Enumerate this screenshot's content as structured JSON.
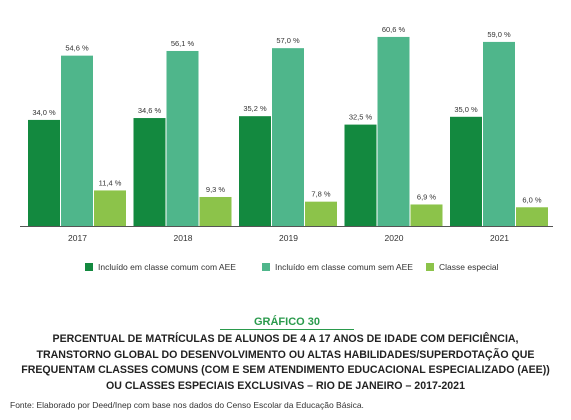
{
  "chart_data": {
    "type": "bar",
    "categories": [
      "2017",
      "2018",
      "2019",
      "2020",
      "2021"
    ],
    "series": [
      {
        "name": "Incluído em classe comum com AEE",
        "color": "#13893f",
        "values": [
          34.0,
          34.6,
          35.2,
          32.5,
          35.0
        ],
        "labels": [
          "34,0 %",
          "34,6 %",
          "35,2 %",
          "32,5 %",
          "35,0 %"
        ]
      },
      {
        "name": "Incluído em classe comum sem AEE",
        "color": "#4fb68b",
        "values": [
          54.6,
          56.1,
          57.0,
          60.6,
          59.0
        ],
        "labels": [
          "54,6 %",
          "56,1 %",
          "57,0 %",
          "60,6 %",
          "59,0 %"
        ]
      },
      {
        "name": "Classe especial",
        "color": "#8cc34a",
        "values": [
          11.4,
          9.3,
          7.8,
          6.9,
          6.0
        ],
        "labels": [
          "11,4 %",
          "9,3 %",
          "7,8 %",
          "6,9 %",
          "6,0 %"
        ]
      }
    ],
    "ylim": [
      0,
      65
    ],
    "grid": false,
    "legend_position": "bottom"
  },
  "caption": {
    "label": "GRÁFICO 30",
    "title_lines": [
      "PERCENTUAL DE MATRÍCULAS DE ALUNOS DE 4 A 17 ANOS DE IDADE COM DEFICIÊNCIA,",
      "TRANSTORNO GLOBAL DO DESENVOLVIMENTO OU ALTAS HABILIDADES/SUPERDOTAÇÃO QUE",
      "FREQUENTAM CLASSES COMUNS (COM E SEM ATENDIMENTO EDUCACIONAL ESPECIALIZADO (AEE))",
      "OU CLASSES ESPECIAIS EXCLUSIVAS – RIO DE JANEIRO – 2017-2021"
    ]
  },
  "source": "Fonte: Elaborado por Deed/Inep com base nos dados do Censo Escolar da Educação Básica."
}
